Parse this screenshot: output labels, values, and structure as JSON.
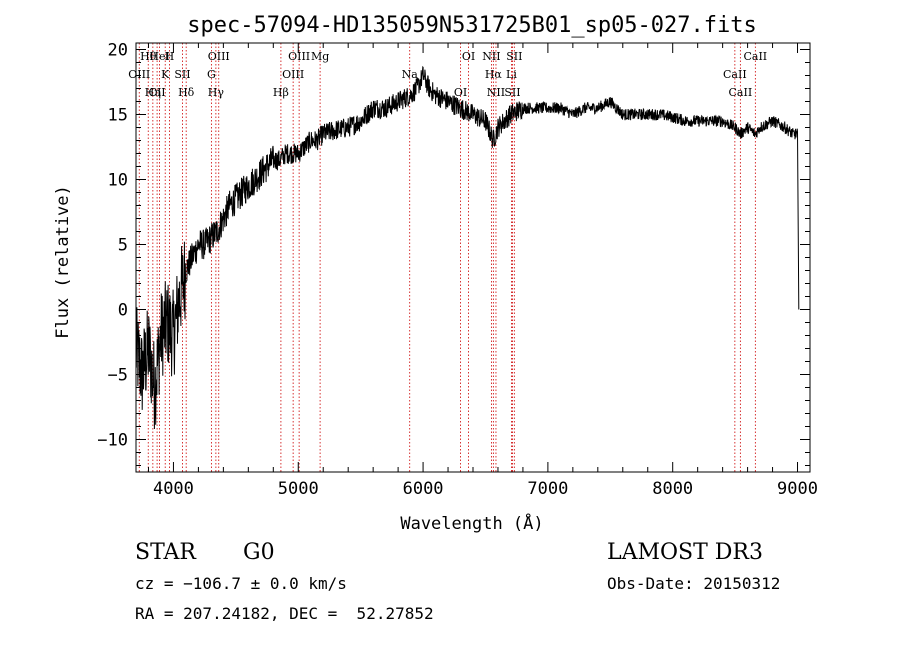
{
  "chart_data": {
    "type": "line",
    "title": "spec-57094-HD135059N531725B01_sp05-027.fits",
    "xlabel": "Wavelength (Å)",
    "ylabel": "Flux (relative)",
    "xlim": [
      3700,
      9100
    ],
    "ylim": [
      -12.5,
      20.5
    ],
    "xticks": [
      4000,
      5000,
      6000,
      7000,
      8000,
      9000
    ],
    "yticks": [
      -10,
      -5,
      0,
      5,
      10,
      15,
      20
    ],
    "series": [
      {
        "x": [
          3700,
          3750,
          3800,
          3850,
          3900,
          3950,
          4000,
          4050,
          4100,
          4150,
          4200,
          4250,
          4300,
          4350,
          4400,
          4450,
          4500,
          4550,
          4600,
          4650,
          4700,
          4750,
          4800,
          4850,
          4900,
          4950,
          5000,
          5050,
          5100,
          5150,
          5200,
          5300,
          5400,
          5500,
          5600,
          5700,
          5800,
          5900,
          5950,
          6000,
          6050,
          6100,
          6200,
          6300,
          6400,
          6500,
          6563,
          6600,
          6700,
          6800,
          6900,
          7000,
          7100,
          7200,
          7300,
          7400,
          7500,
          7600,
          7700,
          7800,
          7900,
          8000,
          8100,
          8200,
          8300,
          8400,
          8500,
          8542,
          8600,
          8662,
          8700,
          8800,
          8900,
          8960,
          9000,
          9010
        ],
        "values": [
          -3,
          -5,
          -3,
          -6,
          -2,
          -1,
          -2,
          1,
          3,
          4,
          5,
          5,
          5.5,
          6,
          7,
          8,
          8.5,
          9,
          9.5,
          10,
          10.5,
          11,
          11.5,
          11.5,
          12,
          12,
          12,
          12.5,
          13,
          13,
          13.5,
          13.8,
          14,
          14.5,
          15.5,
          15.5,
          16,
          16.5,
          17,
          18,
          17,
          16.5,
          16,
          15.5,
          15,
          14.5,
          13,
          14,
          15,
          15.5,
          15.5,
          15.5,
          15.5,
          15,
          15.5,
          15.5,
          16,
          15,
          15,
          15,
          15,
          14.8,
          14.5,
          14.5,
          14.5,
          14.5,
          14,
          13.5,
          14,
          13.5,
          14,
          14.5,
          14,
          13.5,
          13.5,
          0
        ]
      }
    ],
    "lines": [
      {
        "label": "Hθ",
        "x": 3798
      },
      {
        "label": "K",
        "x": 3934
      },
      {
        "label": "Hδ",
        "x": 4102
      },
      {
        "label": "OIII",
        "x": 4363
      },
      {
        "label": "OIII",
        "x": 4959
      },
      {
        "label": "CII",
        "x": 3869
      },
      {
        "label": "HeI",
        "x": 3889
      },
      {
        "label": "SII",
        "x": 4072
      },
      {
        "label": "Hγ",
        "x": 4340
      },
      {
        "label": "OIII",
        "x": 5007
      },
      {
        "label": "OIII",
        "x": 3726
      },
      {
        "label": "Hη",
        "x": 3835
      },
      {
        "label": "H",
        "x": 3968
      },
      {
        "label": "G",
        "x": 4304
      },
      {
        "label": "Hβ",
        "x": 4861
      },
      {
        "label": "Mg",
        "x": 5175
      },
      {
        "label": "Na",
        "x": 5893
      },
      {
        "label": "OI",
        "x": 6300
      },
      {
        "label": "OI",
        "x": 6364
      },
      {
        "label": "Hα",
        "x": 6563
      },
      {
        "label": "SII",
        "x": 6716
      },
      {
        "label": "NII",
        "x": 6548
      },
      {
        "label": "Li",
        "x": 6708
      },
      {
        "label": "NII",
        "x": 6584
      },
      {
        "label": "SII",
        "x": 6731
      },
      {
        "label": "CaII",
        "x": 8498
      },
      {
        "label": "CaII",
        "x": 8542
      },
      {
        "label": "CaII",
        "x": 8662
      }
    ]
  },
  "info": {
    "class": "STAR",
    "subclass": "G0",
    "survey": "LAMOST DR3",
    "cz": "cz = −106.7 ± 0.0 km/s",
    "obs_date": "Obs-Date: 20150312",
    "coords": "RA = 207.24182, DEC =  52.27852"
  },
  "colors": {
    "line_marker": "#cc0000",
    "spectrum": "#000000"
  }
}
